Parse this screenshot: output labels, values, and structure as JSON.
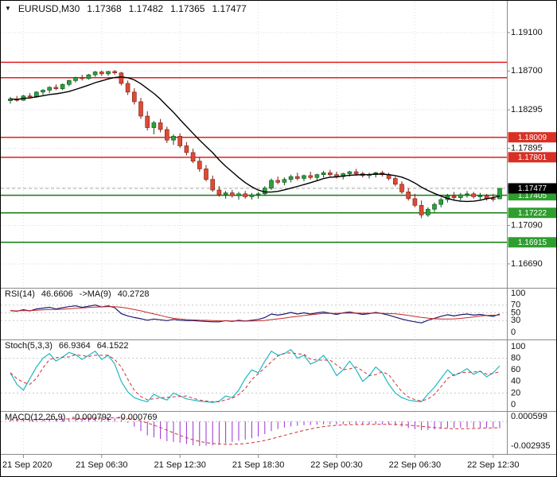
{
  "header": {
    "dropdown_icon": "▼",
    "symbol": "EURUSD,M30",
    "open": "1.17368",
    "high": "1.17482",
    "low": "1.17365",
    "close": "1.17477"
  },
  "colors": {
    "bull_fill": "#2aa23a",
    "bull_stroke": "#0b4e18",
    "bear_fill": "#dd4b35",
    "bear_stroke": "#7c1d12",
    "ma_line": "#000000",
    "resistance": "#e01f1f",
    "support": "#107e10",
    "badge_red": "#d93025",
    "badge_green": "#2e9e2e",
    "badge_current": "#000000",
    "rsi_line": "#1c1c70",
    "rsi_ma_line": "#c62828",
    "stoch_main": "#1fb8c4",
    "stoch_signal": "#d03030",
    "macd_hist": "#9b30d0",
    "macd_signal": "#d03030",
    "grid": "#dcdcdc",
    "level_line": "#c8c8c8",
    "panel_border": "#8a8a8a",
    "axis_text": "#111111",
    "current_price_line": "#aaaaaa"
  },
  "chart_data": {
    "type": "candlestick",
    "symbol": "EURUSD",
    "timeframe": "M30",
    "ohlc_current": {
      "open": 1.17368,
      "high": 1.17482,
      "low": 1.17365,
      "close": 1.17477
    },
    "main_panel": {
      "ylim": [
        1.16466,
        1.19365
      ],
      "price_ticks": [
        {
          "label": "1.19100",
          "price": 1.191
        },
        {
          "label": "1.18700",
          "price": 1.187
        },
        {
          "label": "1.18295",
          "price": 1.18295
        },
        {
          "label": "1.17895",
          "price": 1.17895
        },
        {
          "label": "1.17490",
          "price": 1.1749
        },
        {
          "label": "1.17090",
          "price": 1.1709
        },
        {
          "label": "1.16690",
          "price": 1.1669
        }
      ],
      "hlines": [
        {
          "price": 1.1879,
          "type": "resistance",
          "label": ""
        },
        {
          "price": 1.1863,
          "type": "resistance",
          "label": ""
        },
        {
          "price": 1.18009,
          "type": "resistance",
          "label": "1.18009"
        },
        {
          "price": 1.17801,
          "type": "resistance",
          "label": "1.17801"
        },
        {
          "price": 1.17405,
          "type": "support",
          "label": "1.17405"
        },
        {
          "price": 1.17222,
          "type": "support",
          "label": "1.17222"
        },
        {
          "price": 1.16915,
          "type": "support",
          "label": "1.16915"
        }
      ],
      "current_price_badge": {
        "label": "1.17477",
        "price": 1.17477
      },
      "ma_period": 10,
      "candles": [
        [
          1.1839,
          1.1843,
          1.1836,
          1.1841
        ],
        [
          1.1841,
          1.1844,
          1.1838,
          1.18395
        ],
        [
          1.18395,
          1.1845,
          1.1839,
          1.1844
        ],
        [
          1.1844,
          1.1847,
          1.1841,
          1.1843
        ],
        [
          1.1843,
          1.1849,
          1.1842,
          1.1848
        ],
        [
          1.1848,
          1.1851,
          1.1845,
          1.185
        ],
        [
          1.185,
          1.1854,
          1.1847,
          1.1853
        ],
        [
          1.1853,
          1.1856,
          1.185,
          1.18515
        ],
        [
          1.18515,
          1.1857,
          1.185,
          1.1856
        ],
        [
          1.1856,
          1.1861,
          1.1854,
          1.186
        ],
        [
          1.186,
          1.1864,
          1.1858,
          1.1863
        ],
        [
          1.1863,
          1.1866,
          1.186,
          1.1862
        ],
        [
          1.1862,
          1.1867,
          1.1861,
          1.1866
        ],
        [
          1.1866,
          1.187,
          1.1864,
          1.1869
        ],
        [
          1.1869,
          1.18705,
          1.1865,
          1.1867
        ],
        [
          1.1867,
          1.187,
          1.1865,
          1.18695
        ],
        [
          1.18695,
          1.1871,
          1.1866,
          1.1868
        ],
        [
          1.1868,
          1.1869,
          1.1855,
          1.1857
        ],
        [
          1.1857,
          1.186,
          1.1845,
          1.1848
        ],
        [
          1.1848,
          1.1852,
          1.1835,
          1.1838
        ],
        [
          1.1838,
          1.1842,
          1.182,
          1.1823
        ],
        [
          1.1823,
          1.1828,
          1.1808,
          1.1811
        ],
        [
          1.1811,
          1.1818,
          1.1804,
          1.1816
        ],
        [
          1.1816,
          1.182,
          1.1806,
          1.1809
        ],
        [
          1.1809,
          1.1812,
          1.1795,
          1.1798
        ],
        [
          1.1798,
          1.1804,
          1.1793,
          1.1802
        ],
        [
          1.1802,
          1.1805,
          1.179,
          1.1792
        ],
        [
          1.1792,
          1.1796,
          1.1782,
          1.1785
        ],
        [
          1.1785,
          1.1789,
          1.1774,
          1.1776
        ],
        [
          1.1776,
          1.178,
          1.1765,
          1.1768
        ],
        [
          1.1768,
          1.1772,
          1.1755,
          1.1757
        ],
        [
          1.1757,
          1.1761,
          1.1744,
          1.1746
        ],
        [
          1.1746,
          1.175,
          1.1739,
          1.1741
        ],
        [
          1.1741,
          1.1745,
          1.1737,
          1.1743
        ],
        [
          1.1743,
          1.1746,
          1.1738,
          1.174
        ],
        [
          1.174,
          1.1744,
          1.1736,
          1.1742
        ],
        [
          1.1742,
          1.1745,
          1.1737,
          1.1739
        ],
        [
          1.1739,
          1.1743,
          1.1736,
          1.1741
        ],
        [
          1.1741,
          1.1744,
          1.1737,
          1.1742
        ],
        [
          1.1742,
          1.175,
          1.174,
          1.1748
        ],
        [
          1.1748,
          1.1758,
          1.1746,
          1.1756
        ],
        [
          1.1756,
          1.176,
          1.1752,
          1.1754
        ],
        [
          1.1754,
          1.1759,
          1.1751,
          1.1757
        ],
        [
          1.1757,
          1.1762,
          1.1754,
          1.176
        ],
        [
          1.176,
          1.1764,
          1.1756,
          1.1758
        ],
        [
          1.1758,
          1.1762,
          1.1755,
          1.1761
        ],
        [
          1.1761,
          1.1765,
          1.1757,
          1.1759
        ],
        [
          1.1759,
          1.1763,
          1.1756,
          1.1762
        ],
        [
          1.1762,
          1.1766,
          1.1759,
          1.1764
        ],
        [
          1.1764,
          1.1767,
          1.176,
          1.1762
        ],
        [
          1.1762,
          1.1765,
          1.1758,
          1.176
        ],
        [
          1.176,
          1.1764,
          1.1757,
          1.1763
        ],
        [
          1.1763,
          1.1766,
          1.176,
          1.1765
        ],
        [
          1.1765,
          1.1768,
          1.1761,
          1.1763
        ],
        [
          1.1763,
          1.1765,
          1.1759,
          1.1761
        ],
        [
          1.1761,
          1.1764,
          1.1758,
          1.1762
        ],
        [
          1.1762,
          1.1765,
          1.1759,
          1.1764
        ],
        [
          1.1764,
          1.1766,
          1.176,
          1.1762
        ],
        [
          1.1762,
          1.1764,
          1.1756,
          1.1758
        ],
        [
          1.1758,
          1.176,
          1.175,
          1.1752
        ],
        [
          1.1752,
          1.1755,
          1.1742,
          1.1744
        ],
        [
          1.1744,
          1.1748,
          1.1735,
          1.1737
        ],
        [
          1.1737,
          1.1742,
          1.1728,
          1.173
        ],
        [
          1.173,
          1.1735,
          1.17166,
          1.172
        ],
        [
          1.172,
          1.1728,
          1.1718,
          1.1726
        ],
        [
          1.1726,
          1.1733,
          1.1723,
          1.1731
        ],
        [
          1.1731,
          1.1738,
          1.1728,
          1.1736
        ],
        [
          1.1736,
          1.1742,
          1.1733,
          1.174
        ],
        [
          1.174,
          1.1744,
          1.1736,
          1.1738
        ],
        [
          1.1738,
          1.1743,
          1.1735,
          1.1741
        ],
        [
          1.1741,
          1.1745,
          1.1738,
          1.1742
        ],
        [
          1.1742,
          1.1744,
          1.1737,
          1.1739
        ],
        [
          1.1739,
          1.1743,
          1.1736,
          1.174
        ],
        [
          1.174,
          1.1742,
          1.1735,
          1.1737
        ],
        [
          1.1737,
          1.1742,
          1.1734,
          1.17368
        ],
        [
          1.17368,
          1.17482,
          1.17365,
          1.17477
        ]
      ]
    },
    "time_axis": {
      "labels": [
        {
          "bar": 2,
          "text": "21 Sep 2020"
        },
        {
          "bar": 14,
          "text": "21 Sep 06:30"
        },
        {
          "bar": 26,
          "text": "21 Sep 12:30"
        },
        {
          "bar": 38,
          "text": "21 Sep 18:30"
        },
        {
          "bar": 50,
          "text": "22 Sep 00:30"
        },
        {
          "bar": 62,
          "text": "22 Sep 06:30"
        },
        {
          "bar": 74,
          "text": "22 Sep 12:30"
        }
      ]
    },
    "indicators": {
      "rsi": {
        "name": "RSI(14)",
        "value": "46.6606",
        "ma_name": "->MA(9)",
        "ma_value": "40.2728",
        "ylim": [
          0,
          100
        ],
        "ma_period": 9,
        "levels": [
          70,
          50,
          30
        ],
        "ticks": [
          {
            "label": "100",
            "v": 100
          },
          {
            "label": "70",
            "v": 70
          },
          {
            "label": "50",
            "v": 50
          },
          {
            "label": "30",
            "v": 30
          },
          {
            "label": "0",
            "v": 0
          }
        ],
        "values": [
          56,
          54,
          58,
          55,
          60,
          62,
          64,
          60,
          63,
          66,
          68,
          64,
          67,
          70,
          65,
          68,
          63,
          48,
          42,
          38,
          35,
          31,
          34,
          32,
          30,
          33,
          31,
          30,
          30,
          29,
          28,
          27,
          27,
          30,
          28,
          31,
          29,
          31,
          33,
          38,
          47,
          44,
          47,
          51,
          47,
          50,
          47,
          50,
          52,
          49,
          46,
          50,
          52,
          49,
          46,
          48,
          51,
          48,
          44,
          39,
          34,
          30,
          27,
          24,
          31,
          36,
          41,
          45,
          42,
          45,
          47,
          44,
          46,
          43,
          41,
          46.66
        ]
      },
      "stoch": {
        "name": "Stoch(5,3,3)",
        "value": "66.9364",
        "signal_value": "64.1522",
        "ylim": [
          0,
          100
        ],
        "signal_period": 3,
        "levels": [
          80,
          20
        ],
        "ticks": [
          {
            "label": "100",
            "v": 100
          },
          {
            "label": "80",
            "v": 80
          },
          {
            "label": "60",
            "v": 60
          },
          {
            "label": "40",
            "v": 40
          },
          {
            "label": "20",
            "v": 20
          },
          {
            "label": "0",
            "v": 0
          }
        ],
        "values": [
          55,
          35,
          25,
          45,
          65,
          80,
          88,
          75,
          82,
          90,
          86,
          78,
          85,
          92,
          78,
          85,
          70,
          40,
          22,
          12,
          8,
          5,
          18,
          12,
          8,
          20,
          15,
          10,
          8,
          6,
          5,
          4,
          6,
          15,
          12,
          25,
          45,
          60,
          55,
          75,
          92,
          85,
          88,
          95,
          80,
          85,
          70,
          75,
          85,
          70,
          50,
          60,
          75,
          60,
          40,
          50,
          65,
          55,
          35,
          20,
          12,
          8,
          6,
          5,
          18,
          30,
          45,
          60,
          50,
          55,
          62,
          52,
          58,
          48,
          55,
          66.94
        ]
      },
      "macd": {
        "name": "MACD(12,26,9)",
        "value": "-0.000792",
        "signal_value": "-0.000769",
        "ylim": [
          -0.002935,
          0.000599
        ],
        "signal_period": 9,
        "ticks": [
          {
            "label": "0.000599",
            "v": 0.000599
          },
          {
            "label": "-0.002935",
            "v": -0.002935
          }
        ],
        "values": [
          0.0002,
          0.00022,
          0.00025,
          0.00024,
          0.00028,
          0.00032,
          0.00036,
          0.00035,
          0.00038,
          0.00042,
          0.00046,
          0.00044,
          0.00046,
          0.0005,
          0.00048,
          0.00048,
          0.00042,
          0.0002,
          -0.00015,
          -0.0006,
          -0.00115,
          -0.00165,
          -0.0019,
          -0.0021,
          -0.00235,
          -0.00245,
          -0.00255,
          -0.0027,
          -0.00285,
          -0.00293,
          -0.0029,
          -0.00285,
          -0.00275,
          -0.0026,
          -0.00245,
          -0.0023,
          -0.00215,
          -0.002,
          -0.0018,
          -0.0015,
          -0.00115,
          -0.0009,
          -0.00072,
          -0.00058,
          -0.0005,
          -0.00044,
          -0.00042,
          -0.00038,
          -0.00034,
          -0.00033,
          -0.00035,
          -0.00033,
          -0.0003,
          -0.0003,
          -0.00033,
          -0.00034,
          -0.00032,
          -0.00033,
          -0.00038,
          -0.00048,
          -0.00062,
          -0.00078,
          -0.00092,
          -0.00102,
          -0.001,
          -0.00094,
          -0.00086,
          -0.00078,
          -0.00076,
          -0.00073,
          -0.00071,
          -0.00073,
          -0.00072,
          -0.00074,
          -0.00077,
          -0.000792
        ]
      }
    }
  }
}
